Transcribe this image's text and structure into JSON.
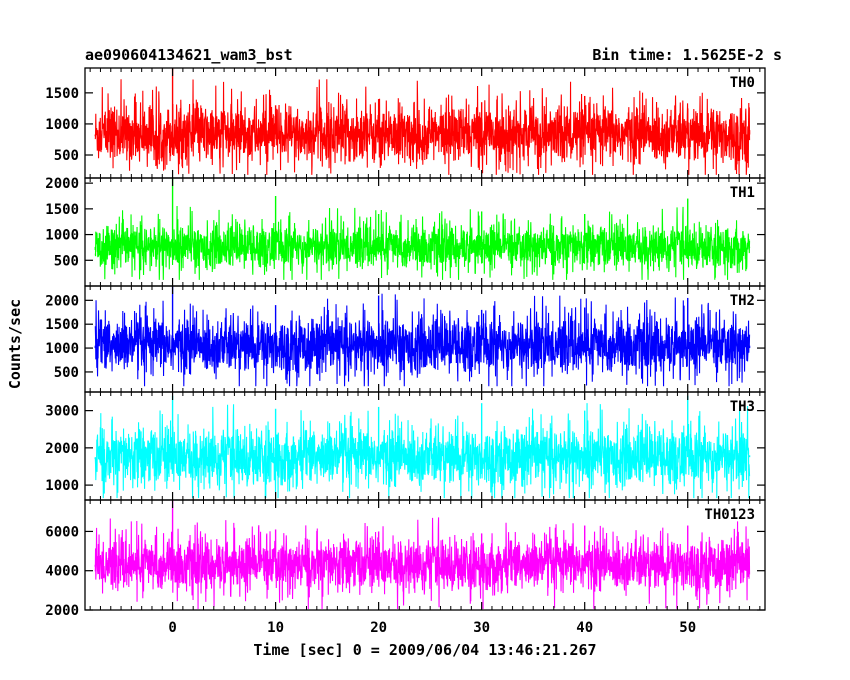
{
  "chart_data": {
    "type": "line",
    "title": "ae090604134621_wam3_bst",
    "bin_time": "Bin time: 1.5625E-2 s",
    "xlabel": "Time [sec] 0 = 2009/06/04 13:46:21.267",
    "ylabel": "Counts/sec",
    "xlim": [
      -8.5,
      57.5
    ],
    "x_ticks": [
      0,
      10,
      20,
      30,
      40,
      50
    ],
    "x_range": [
      -7.5,
      56
    ],
    "shared_x": true,
    "grid": false,
    "panels": [
      {
        "name": "TH0",
        "color": "#ff0000",
        "ylim": [
          130,
          1900
        ],
        "y_ticks": [
          500,
          1000,
          1500
        ],
        "mean": 830,
        "spread": 320,
        "low": 180,
        "high": 1900,
        "markers": [
          [
            -7.5,
            800
          ],
          [
            0,
            1900
          ],
          [
            10,
            1300
          ],
          [
            20,
            1400
          ],
          [
            30,
            1350
          ],
          [
            40,
            1450
          ],
          [
            50,
            1250
          ],
          [
            56,
            900
          ]
        ]
      },
      {
        "name": "TH1",
        "color": "#00ff00",
        "ylim": [
          0,
          2100
        ],
        "y_ticks": [
          500,
          1000,
          1500,
          2000
        ],
        "mean": 760,
        "spread": 290,
        "low": 120,
        "high": 2100,
        "markers": [
          [
            -7.5,
            700
          ],
          [
            0,
            2100
          ],
          [
            10,
            1750
          ],
          [
            20,
            1400
          ],
          [
            30,
            1450
          ],
          [
            40,
            1400
          ],
          [
            50,
            1700
          ],
          [
            56,
            750
          ]
        ]
      },
      {
        "name": "TH2",
        "color": "#0000ff",
        "ylim": [
          80,
          2300
        ],
        "y_ticks": [
          500,
          1000,
          1500,
          2000
        ],
        "mean": 1050,
        "spread": 400,
        "low": 200,
        "high": 2300,
        "markers": [
          [
            -7.5,
            1000
          ],
          [
            0,
            2300
          ],
          [
            10,
            1900
          ],
          [
            20,
            2100
          ],
          [
            30,
            1800
          ],
          [
            40,
            1850
          ],
          [
            50,
            2050
          ],
          [
            56,
            1000
          ]
        ]
      },
      {
        "name": "TH3",
        "color": "#00ffff",
        "ylim": [
          600,
          3500
        ],
        "y_ticks": [
          1000,
          2000,
          3000
        ],
        "mean": 1750,
        "spread": 530,
        "low": 650,
        "high": 3500,
        "markers": [
          [
            -7.5,
            1700
          ],
          [
            0,
            3400
          ],
          [
            10,
            3050
          ],
          [
            20,
            3100
          ],
          [
            30,
            3200
          ],
          [
            40,
            3000
          ],
          [
            50,
            3400
          ],
          [
            56,
            1800
          ]
        ]
      },
      {
        "name": "TH0123",
        "color": "#ff00ff",
        "ylim": [
          2000,
          7600
        ],
        "y_ticks": [
          2000,
          4000,
          6000
        ],
        "mean": 4300,
        "spread": 900,
        "low": 2050,
        "high": 7600,
        "markers": [
          [
            -7.5,
            4200
          ],
          [
            0,
            7600
          ],
          [
            10,
            6100
          ],
          [
            20,
            6000
          ],
          [
            30,
            5900
          ],
          [
            40,
            6300
          ],
          [
            50,
            6300
          ],
          [
            56,
            4300
          ]
        ]
      }
    ]
  }
}
